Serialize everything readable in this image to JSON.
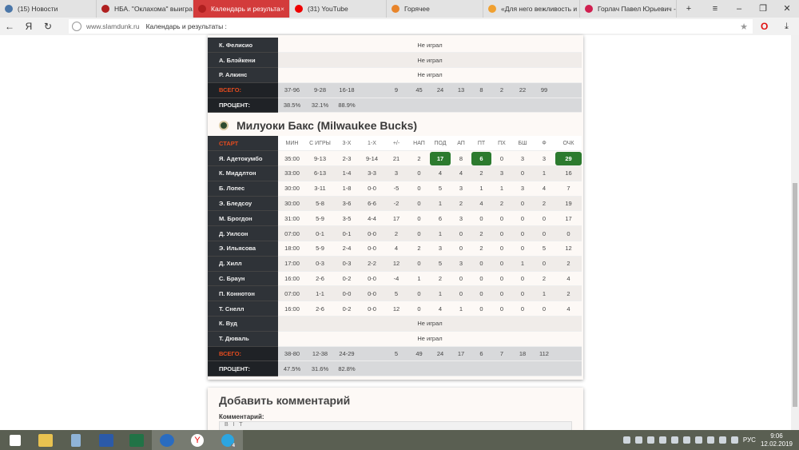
{
  "browser": {
    "tabs": [
      {
        "label": "(15) Новости",
        "icon": "vk-icon",
        "color": "#4a76a8"
      },
      {
        "label": "НБА. \"Оклахома\" выигра",
        "icon": "basketball-icon",
        "color": "#b02020"
      },
      {
        "label": "Календарь и результа",
        "icon": "basketball-icon",
        "color": "#b02020",
        "active": true
      },
      {
        "label": "(31) YouTube",
        "icon": "youtube-icon",
        "color": "#e00"
      },
      {
        "label": "Горячее",
        "icon": "pikabu-icon",
        "color": "#e8842a"
      },
      {
        "label": "«Для него вежливость и",
        "icon": "clock-icon",
        "color": "#f0a030"
      },
      {
        "label": "Горлач Павел Юрьевич -",
        "icon": "site-icon",
        "color": "#d02050"
      }
    ],
    "url_host": "www.slamdunk.ru",
    "page_title": "Календарь и результаты :"
  },
  "team1": {
    "rows": [
      {
        "name": "К. Фелисио",
        "dnp": "Не играл"
      },
      {
        "name": "А. Блэйкени",
        "dnp": "Не играл"
      },
      {
        "name": "Р. Алкинс",
        "dnp": "Не играл"
      }
    ],
    "total": {
      "label": "ВСЕГО:",
      "values": [
        "",
        "37-96",
        "9-28",
        "16-18",
        "",
        "9",
        "45",
        "24",
        "13",
        "8",
        "2",
        "22",
        "99"
      ]
    },
    "percent": {
      "label": "ПРОЦЕНТ:",
      "values": [
        "",
        "38.5%",
        "32.1%",
        "88.9%"
      ]
    }
  },
  "team2": {
    "title": "Милуоки Бакс (Milwaukee Bucks)",
    "headers": [
      "СТАРТ",
      "МИН",
      "С ИГРЫ",
      "3-Х",
      "1-Х",
      "+/-",
      "НАП",
      "ПОД",
      "АП",
      "ПТ",
      "ПХ",
      "БШ",
      "Ф",
      "ОЧК"
    ],
    "rows": [
      {
        "name": "Я. Адетокумбо",
        "stats": [
          "35:00",
          "9-13",
          "2-3",
          "9-14",
          "21",
          "2",
          "17",
          "8",
          "6",
          "0",
          "3",
          "3",
          "29"
        ],
        "highlight": [
          6,
          8,
          12
        ]
      },
      {
        "name": "К. Миддлтон",
        "stats": [
          "33:00",
          "6-13",
          "1-4",
          "3-3",
          "3",
          "0",
          "4",
          "4",
          "2",
          "3",
          "0",
          "1",
          "16"
        ]
      },
      {
        "name": "Б. Лопес",
        "stats": [
          "30:00",
          "3-11",
          "1-8",
          "0-0",
          "-5",
          "0",
          "5",
          "3",
          "1",
          "1",
          "3",
          "4",
          "7"
        ]
      },
      {
        "name": "Э. Бледсоу",
        "stats": [
          "30:00",
          "5-8",
          "3-6",
          "6-6",
          "-2",
          "0",
          "1",
          "2",
          "4",
          "2",
          "0",
          "2",
          "19"
        ]
      },
      {
        "name": "М. Брогдон",
        "stats": [
          "31:00",
          "5-9",
          "3-5",
          "4-4",
          "17",
          "0",
          "6",
          "3",
          "0",
          "0",
          "0",
          "0",
          "17"
        ]
      },
      {
        "name": "Д. Уилсон",
        "stats": [
          "07:00",
          "0-1",
          "0-1",
          "0-0",
          "2",
          "0",
          "1",
          "0",
          "2",
          "0",
          "0",
          "0",
          "0"
        ]
      },
      {
        "name": "Э. Ильясова",
        "stats": [
          "18:00",
          "5-9",
          "2-4",
          "0-0",
          "4",
          "2",
          "3",
          "0",
          "2",
          "0",
          "0",
          "5",
          "12"
        ]
      },
      {
        "name": "Д. Хилл",
        "stats": [
          "17:00",
          "0-3",
          "0-3",
          "2-2",
          "12",
          "0",
          "5",
          "3",
          "0",
          "0",
          "1",
          "0",
          "2"
        ]
      },
      {
        "name": "С. Браун",
        "stats": [
          "16:00",
          "2-6",
          "0-2",
          "0-0",
          "-4",
          "1",
          "2",
          "0",
          "0",
          "0",
          "0",
          "2",
          "4"
        ]
      },
      {
        "name": "П. Коннотон",
        "stats": [
          "07:00",
          "1-1",
          "0-0",
          "0-0",
          "5",
          "0",
          "1",
          "0",
          "0",
          "0",
          "0",
          "1",
          "2"
        ]
      },
      {
        "name": "Т. Снелл",
        "stats": [
          "16:00",
          "2-6",
          "0-2",
          "0-0",
          "12",
          "0",
          "4",
          "1",
          "0",
          "0",
          "0",
          "0",
          "4"
        ]
      },
      {
        "name": "К. Вуд",
        "dnp": "Не играл"
      },
      {
        "name": "Т. Дюваль",
        "dnp": "Не играл"
      }
    ],
    "total": {
      "label": "ВСЕГО:",
      "values": [
        "",
        "38-80",
        "12-38",
        "24-29",
        "",
        "5",
        "49",
        "24",
        "17",
        "6",
        "7",
        "18",
        "112"
      ]
    },
    "percent": {
      "label": "ПРОЦЕНТ:",
      "values": [
        "",
        "47.5%",
        "31.6%",
        "82.8%"
      ]
    }
  },
  "comments": {
    "title": "Добавить комментарий",
    "field_label": "Комментарий:",
    "toolbar": [
      "B",
      "I",
      "T"
    ]
  },
  "taskbar": {
    "lang": "РУС",
    "time": "9:06",
    "date": "12.02.2019",
    "telegram_badge": "4"
  },
  "colors": {
    "accent_red": "#e34b1f",
    "highlight_green": "#2c7a2e",
    "active_tab": "#d33b3b"
  }
}
